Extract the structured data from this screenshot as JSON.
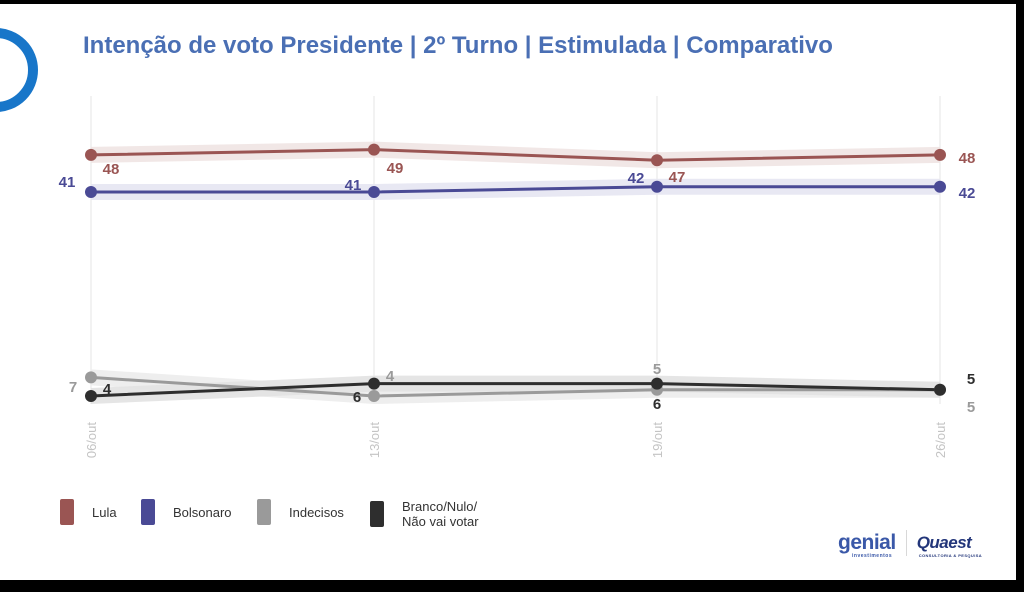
{
  "title": "Intenção de voto Presidente | 2º Turno | Estimulada | Comparativo",
  "chart_data": {
    "type": "line",
    "categories": [
      "06/out",
      "13/out",
      "19/out",
      "26/out"
    ],
    "ylim": [
      0,
      55
    ],
    "grid": "vertical",
    "legend": "bottom-left",
    "series": [
      {
        "name": "Lula",
        "color": "#9a5553",
        "band": "#efe4e3",
        "values": [
          48,
          49,
          47,
          48
        ],
        "labels": [
          "48",
          "49",
          "47",
          "48"
        ]
      },
      {
        "name": "Bolsonaro",
        "color": "#4a4a95",
        "band": "#e5e5f2",
        "values": [
          41,
          41,
          42,
          42
        ],
        "labels": [
          "41",
          "41",
          "42",
          "42"
        ]
      },
      {
        "name": "Indecisos",
        "color": "#9a9a9a",
        "band": "#ececec",
        "values": [
          7,
          4,
          5,
          5
        ],
        "labels": [
          "7",
          "4",
          "5",
          "5"
        ]
      },
      {
        "name": "Branco/Nulo/\nNão vai votar",
        "color": "#2e2e2e",
        "band": "#e2e2e2",
        "values": [
          4,
          6,
          6,
          5
        ],
        "labels": [
          "4",
          "6",
          "6",
          "5"
        ]
      }
    ]
  },
  "logos": {
    "genial": "genial",
    "genial_sub": "investimentos",
    "quaest": "Quaest",
    "quaest_sub": "CONSULTORIA & PESQUISA"
  }
}
